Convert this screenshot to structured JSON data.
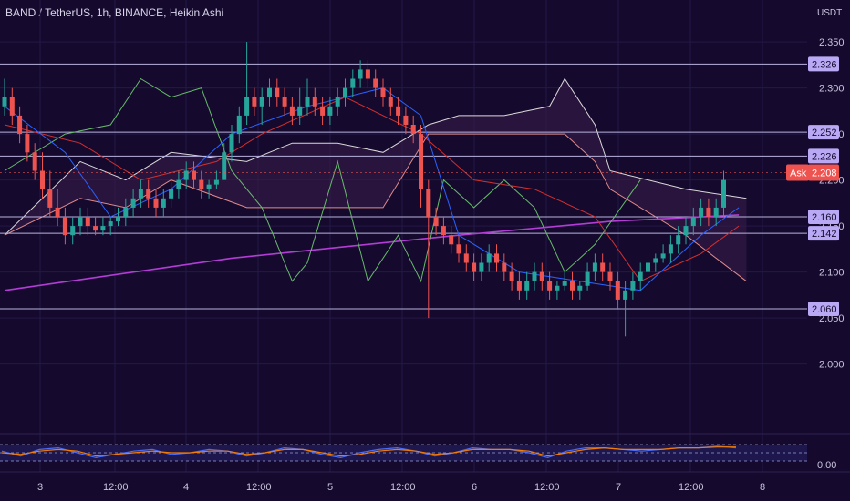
{
  "header": {
    "title": "BAND / TetherUS, 1h, BINANCE, Heikin Ashi",
    "currency": "USDT"
  },
  "colors": {
    "background": "#150a2e",
    "up": "#26a69a",
    "down": "#ef5350",
    "hline": "#b9b3df",
    "label_bg": "#b9a9f5",
    "ask_bg": "#ef5350",
    "ma200": "#b43cd6",
    "ma_fast": "#2962ff",
    "ma_slow": "#d32f2f",
    "lagging": "#66bb6a",
    "cloud_edge": "#d9d9d9",
    "osc_k": "#4a6cf7",
    "osc_d": "#f57c00"
  },
  "chart_data": {
    "type": "candlestick",
    "symbol": "BAND / TetherUS",
    "interval": "1h",
    "exchange": "BINANCE",
    "style": "Heikin Ashi",
    "ylim": [
      1.96,
      2.36
    ],
    "y_ticks": [
      "2.350",
      "2.300",
      "2.250",
      "2.200",
      "2.150",
      "2.100",
      "2.050",
      "2.000"
    ],
    "x_ticks": [
      "3",
      "12:00",
      "4",
      "12:00",
      "5",
      "12:00",
      "6",
      "12:00",
      "7",
      "12:00",
      "8"
    ],
    "horizontal_levels": [
      2.326,
      2.252,
      2.226,
      2.16,
      2.142,
      2.06
    ],
    "level_labels": [
      "2.326",
      "2.252",
      "2.226",
      "2.160",
      "2.142",
      "2.060"
    ],
    "ask": {
      "label": "Ask",
      "value": 2.208,
      "text": "2.208"
    },
    "candles": [
      [
        2.28,
        2.31,
        2.27,
        2.29
      ],
      [
        2.29,
        2.3,
        2.26,
        2.27
      ],
      [
        2.27,
        2.28,
        2.24,
        2.25
      ],
      [
        2.25,
        2.26,
        2.22,
        2.23
      ],
      [
        2.23,
        2.24,
        2.2,
        2.21
      ],
      [
        2.21,
        2.23,
        2.18,
        2.19
      ],
      [
        2.19,
        2.21,
        2.16,
        2.17
      ],
      [
        2.17,
        2.19,
        2.15,
        2.16
      ],
      [
        2.16,
        2.17,
        2.13,
        2.14
      ],
      [
        2.14,
        2.16,
        2.13,
        2.15
      ],
      [
        2.15,
        2.17,
        2.14,
        2.16
      ],
      [
        2.16,
        2.17,
        2.14,
        2.15
      ],
      [
        2.15,
        2.16,
        2.14,
        2.145
      ],
      [
        2.145,
        2.16,
        2.14,
        2.15
      ],
      [
        2.15,
        2.16,
        2.14,
        2.155
      ],
      [
        2.155,
        2.17,
        2.15,
        2.16
      ],
      [
        2.16,
        2.18,
        2.15,
        2.17
      ],
      [
        2.17,
        2.19,
        2.16,
        2.18
      ],
      [
        2.18,
        2.2,
        2.17,
        2.19
      ],
      [
        2.19,
        2.2,
        2.17,
        2.18
      ],
      [
        2.18,
        2.19,
        2.16,
        2.17
      ],
      [
        2.17,
        2.19,
        2.16,
        2.18
      ],
      [
        2.18,
        2.2,
        2.17,
        2.19
      ],
      [
        2.19,
        2.21,
        2.18,
        2.2
      ],
      [
        2.2,
        2.22,
        2.19,
        2.21
      ],
      [
        2.21,
        2.22,
        2.19,
        2.2
      ],
      [
        2.2,
        2.21,
        2.18,
        2.19
      ],
      [
        2.19,
        2.2,
        2.18,
        2.195
      ],
      [
        2.195,
        2.21,
        2.19,
        2.2
      ],
      [
        2.2,
        2.24,
        2.2,
        2.23
      ],
      [
        2.23,
        2.26,
        2.22,
        2.25
      ],
      [
        2.25,
        2.28,
        2.24,
        2.27
      ],
      [
        2.27,
        2.35,
        2.26,
        2.29
      ],
      [
        2.29,
        2.3,
        2.27,
        2.28
      ],
      [
        2.28,
        2.3,
        2.26,
        2.29
      ],
      [
        2.29,
        2.31,
        2.28,
        2.3
      ],
      [
        2.3,
        2.31,
        2.28,
        2.29
      ],
      [
        2.29,
        2.3,
        2.27,
        2.28
      ],
      [
        2.28,
        2.29,
        2.26,
        2.27
      ],
      [
        2.27,
        2.3,
        2.26,
        2.28
      ],
      [
        2.28,
        2.31,
        2.27,
        2.29
      ],
      [
        2.29,
        2.3,
        2.27,
        2.28
      ],
      [
        2.28,
        2.29,
        2.26,
        2.27
      ],
      [
        2.27,
        2.29,
        2.26,
        2.28
      ],
      [
        2.28,
        2.3,
        2.27,
        2.29
      ],
      [
        2.29,
        2.31,
        2.28,
        2.3
      ],
      [
        2.3,
        2.32,
        2.29,
        2.31
      ],
      [
        2.31,
        2.33,
        2.3,
        2.32
      ],
      [
        2.32,
        2.33,
        2.3,
        2.31
      ],
      [
        2.31,
        2.32,
        2.29,
        2.3
      ],
      [
        2.3,
        2.31,
        2.28,
        2.29
      ],
      [
        2.29,
        2.3,
        2.27,
        2.28
      ],
      [
        2.28,
        2.29,
        2.26,
        2.27
      ],
      [
        2.27,
        2.28,
        2.25,
        2.26
      ],
      [
        2.26,
        2.27,
        2.24,
        2.25
      ],
      [
        2.25,
        2.26,
        2.17,
        2.19
      ],
      [
        2.19,
        2.2,
        2.05,
        2.16
      ],
      [
        2.16,
        2.17,
        2.14,
        2.15
      ],
      [
        2.15,
        2.16,
        2.13,
        2.14
      ],
      [
        2.14,
        2.15,
        2.12,
        2.13
      ],
      [
        2.13,
        2.14,
        2.11,
        2.12
      ],
      [
        2.12,
        2.13,
        2.1,
        2.11
      ],
      [
        2.11,
        2.12,
        2.09,
        2.1
      ],
      [
        2.1,
        2.12,
        2.09,
        2.11
      ],
      [
        2.11,
        2.13,
        2.1,
        2.12
      ],
      [
        2.12,
        2.13,
        2.1,
        2.11
      ],
      [
        2.11,
        2.12,
        2.09,
        2.1
      ],
      [
        2.1,
        2.11,
        2.08,
        2.09
      ],
      [
        2.09,
        2.1,
        2.07,
        2.08
      ],
      [
        2.08,
        2.1,
        2.07,
        2.09
      ],
      [
        2.09,
        2.11,
        2.08,
        2.1
      ],
      [
        2.1,
        2.11,
        2.08,
        2.09
      ],
      [
        2.09,
        2.1,
        2.07,
        2.08
      ],
      [
        2.08,
        2.09,
        2.07,
        2.085
      ],
      [
        2.085,
        2.1,
        2.08,
        2.09
      ],
      [
        2.09,
        2.1,
        2.07,
        2.08
      ],
      [
        2.08,
        2.09,
        2.07,
        2.085
      ],
      [
        2.085,
        2.11,
        2.08,
        2.1
      ],
      [
        2.1,
        2.12,
        2.09,
        2.11
      ],
      [
        2.11,
        2.12,
        2.09,
        2.1
      ],
      [
        2.1,
        2.11,
        2.08,
        2.09
      ],
      [
        2.09,
        2.1,
        2.06,
        2.07
      ],
      [
        2.07,
        2.09,
        2.03,
        2.08
      ],
      [
        2.08,
        2.1,
        2.07,
        2.09
      ],
      [
        2.09,
        2.11,
        2.08,
        2.1
      ],
      [
        2.1,
        2.12,
        2.09,
        2.11
      ],
      [
        2.11,
        2.12,
        2.1,
        2.115
      ],
      [
        2.115,
        2.13,
        2.11,
        2.12
      ],
      [
        2.12,
        2.14,
        2.11,
        2.13
      ],
      [
        2.13,
        2.15,
        2.12,
        2.14
      ],
      [
        2.14,
        2.16,
        2.13,
        2.15
      ],
      [
        2.15,
        2.17,
        2.14,
        2.16
      ],
      [
        2.16,
        2.18,
        2.15,
        2.17
      ],
      [
        2.17,
        2.18,
        2.15,
        2.16
      ],
      [
        2.16,
        2.18,
        2.15,
        2.17
      ],
      [
        2.17,
        2.21,
        2.16,
        2.2
      ]
    ],
    "ma200": [
      [
        0,
        2.08
      ],
      [
        30,
        2.115
      ],
      [
        60,
        2.14
      ],
      [
        80,
        2.155
      ],
      [
        97,
        2.162
      ]
    ],
    "ma_fast": [
      [
        0,
        2.28
      ],
      [
        8,
        2.23
      ],
      [
        14,
        2.16
      ],
      [
        22,
        2.19
      ],
      [
        30,
        2.25
      ],
      [
        40,
        2.28
      ],
      [
        50,
        2.3
      ],
      [
        55,
        2.27
      ],
      [
        60,
        2.14
      ],
      [
        68,
        2.1
      ],
      [
        76,
        2.09
      ],
      [
        84,
        2.08
      ],
      [
        92,
        2.14
      ],
      [
        97,
        2.17
      ]
    ],
    "ma_slow": [
      [
        0,
        2.26
      ],
      [
        10,
        2.24
      ],
      [
        18,
        2.2
      ],
      [
        28,
        2.22
      ],
      [
        34,
        2.25
      ],
      [
        45,
        2.29
      ],
      [
        55,
        2.25
      ],
      [
        62,
        2.2
      ],
      [
        70,
        2.19
      ],
      [
        78,
        2.16
      ],
      [
        84,
        2.09
      ],
      [
        92,
        2.12
      ],
      [
        97,
        2.15
      ]
    ],
    "lagging_span": [
      [
        0,
        2.21
      ],
      [
        8,
        2.25
      ],
      [
        14,
        2.26
      ],
      [
        18,
        2.31
      ],
      [
        22,
        2.29
      ],
      [
        26,
        2.3
      ],
      [
        30,
        2.21
      ],
      [
        34,
        2.17
      ],
      [
        38,
        2.09
      ],
      [
        40,
        2.11
      ],
      [
        44,
        2.22
      ],
      [
        48,
        2.09
      ],
      [
        52,
        2.14
      ],
      [
        55,
        2.09
      ],
      [
        58,
        2.2
      ],
      [
        62,
        2.17
      ],
      [
        66,
        2.2
      ],
      [
        70,
        2.17
      ],
      [
        74,
        2.1
      ],
      [
        78,
        2.13
      ],
      [
        84,
        2.2
      ]
    ],
    "cloud_a": [
      [
        0,
        2.14
      ],
      [
        10,
        2.22
      ],
      [
        16,
        2.2
      ],
      [
        22,
        2.23
      ],
      [
        32,
        2.22
      ],
      [
        38,
        2.24
      ],
      [
        44,
        2.24
      ],
      [
        50,
        2.23
      ],
      [
        56,
        2.26
      ],
      [
        60,
        2.27
      ],
      [
        66,
        2.27
      ],
      [
        72,
        2.28
      ],
      [
        74,
        2.31
      ],
      [
        78,
        2.26
      ],
      [
        80,
        2.21
      ],
      [
        90,
        2.19
      ],
      [
        98,
        2.18
      ]
    ],
    "cloud_b": [
      [
        0,
        2.14
      ],
      [
        10,
        2.18
      ],
      [
        16,
        2.17
      ],
      [
        22,
        2.2
      ],
      [
        32,
        2.17
      ],
      [
        38,
        2.17
      ],
      [
        44,
        2.17
      ],
      [
        50,
        2.17
      ],
      [
        56,
        2.25
      ],
      [
        60,
        2.25
      ],
      [
        66,
        2.25
      ],
      [
        72,
        2.25
      ],
      [
        74,
        2.25
      ],
      [
        78,
        2.22
      ],
      [
        80,
        2.19
      ],
      [
        90,
        2.14
      ],
      [
        98,
        2.09
      ]
    ],
    "osc_k": [
      0.6,
      0.3,
      0.7,
      0.8,
      0.5,
      0.2,
      0.4,
      0.6,
      0.7,
      0.4,
      0.5,
      0.7,
      0.6,
      0.3,
      0.5,
      0.8,
      0.7,
      0.4,
      0.2,
      0.5,
      0.7,
      0.8,
      0.6,
      0.3,
      0.5,
      0.8,
      0.7,
      0.7,
      0.5,
      0.2,
      0.6,
      0.8,
      0.8,
      0.7,
      0.6,
      0.7,
      0.8,
      0.8,
      0.9,
      0.8
    ],
    "osc_d": [
      0.5,
      0.4,
      0.6,
      0.7,
      0.6,
      0.3,
      0.4,
      0.5,
      0.6,
      0.5,
      0.5,
      0.6,
      0.6,
      0.4,
      0.5,
      0.7,
      0.7,
      0.5,
      0.3,
      0.4,
      0.6,
      0.7,
      0.6,
      0.4,
      0.5,
      0.7,
      0.7,
      0.7,
      0.6,
      0.3,
      0.5,
      0.7,
      0.8,
      0.7,
      0.7,
      0.7,
      0.8,
      0.8,
      0.85,
      0.85
    ],
    "osc_ticks": [
      "0.00"
    ]
  }
}
